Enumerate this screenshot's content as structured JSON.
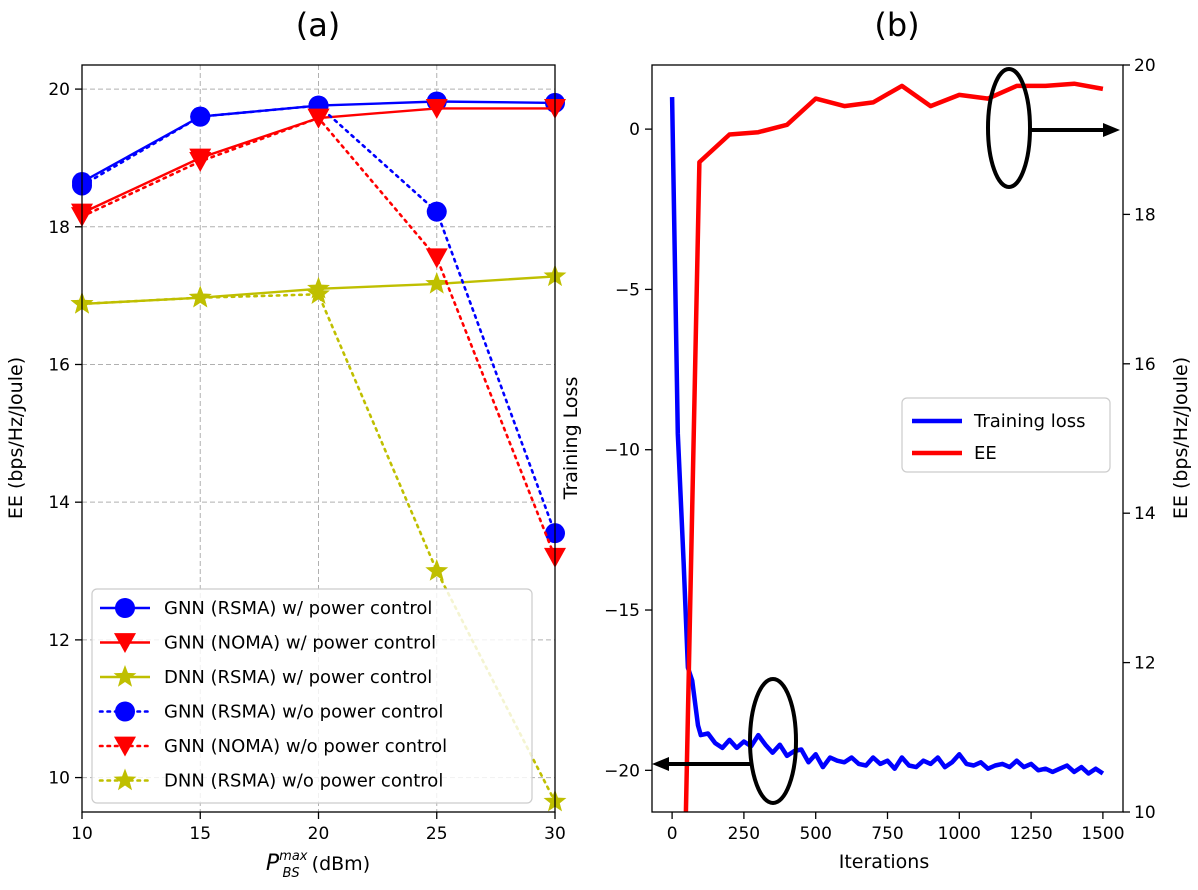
{
  "chart_data": [
    {
      "panel": "(a)",
      "type": "line",
      "xlabel_base": "P",
      "xlabel_sup": "max",
      "xlabel_sub": "BS",
      "xlabel_unit": "(dBm)",
      "ylabel": "EE (bps/Hz/Joule)",
      "xlim": [
        10,
        30
      ],
      "ylim": [
        9.5,
        20.35
      ],
      "xticks": [
        10,
        15,
        20,
        25,
        30
      ],
      "yticks": [
        10,
        12,
        14,
        16,
        18,
        20
      ],
      "grid": true,
      "legend_position": "lower-left",
      "x": [
        10,
        15,
        20,
        25,
        30
      ],
      "series": [
        {
          "name": "GNN (RSMA) w/ power control",
          "color": "#0000ff",
          "style": "solid",
          "marker": "circle",
          "values": [
            18.65,
            19.6,
            19.76,
            19.82,
            19.8
          ]
        },
        {
          "name": "GNN (NOMA) w/ power control",
          "color": "#ff0000",
          "style": "solid",
          "marker": "triangle-down",
          "values": [
            18.2,
            19.0,
            19.58,
            19.72,
            19.72
          ]
        },
        {
          "name": "DNN (RSMA) w/ power control",
          "color": "#bfbf00",
          "style": "solid",
          "marker": "star",
          "values": [
            16.88,
            16.97,
            17.1,
            17.17,
            17.28
          ]
        },
        {
          "name": "GNN (RSMA) w/o power control",
          "color": "#0000ff",
          "style": "dotted",
          "marker": "circle",
          "values": [
            18.6,
            19.6,
            19.76,
            18.22,
            13.55
          ]
        },
        {
          "name": "GNN (NOMA) w/o power control",
          "color": "#ff0000",
          "style": "dotted",
          "marker": "triangle-down",
          "values": [
            18.15,
            18.95,
            19.58,
            17.55,
            13.2
          ]
        },
        {
          "name": "DNN (RSMA) w/o power control",
          "color": "#bfbf00",
          "style": "dotted",
          "marker": "star",
          "values": [
            16.88,
            16.97,
            17.02,
            13.0,
            9.65
          ]
        }
      ]
    },
    {
      "panel": "(b)",
      "type": "line",
      "xlabel": "Iterations",
      "ylabel_left": "Training Loss",
      "ylabel_right": "EE (bps/Hz/Joule)",
      "xlim": [
        -70,
        1570
      ],
      "ylim_left": [
        -21.3,
        2
      ],
      "ylim_right": [
        10,
        20
      ],
      "xticks": [
        0,
        250,
        500,
        750,
        1000,
        1250,
        1500
      ],
      "yticks_left": [
        -20,
        -15,
        -10,
        -5,
        0
      ],
      "yticks_right": [
        10,
        12,
        14,
        16,
        18,
        20
      ],
      "grid": false,
      "legend_position": "center-right",
      "series": [
        {
          "name": "Training loss",
          "axis": "left",
          "color": "#0000ff",
          "x": [
            0,
            20,
            40,
            55,
            70,
            90,
            100,
            125,
            150,
            175,
            200,
            225,
            250,
            275,
            300,
            325,
            350,
            375,
            400,
            425,
            450,
            475,
            500,
            525,
            550,
            575,
            600,
            625,
            650,
            675,
            700,
            725,
            750,
            775,
            800,
            825,
            850,
            875,
            900,
            925,
            950,
            975,
            1000,
            1025,
            1050,
            1075,
            1100,
            1125,
            1150,
            1175,
            1200,
            1225,
            1250,
            1275,
            1300,
            1325,
            1350,
            1375,
            1400,
            1425,
            1450,
            1475,
            1500
          ],
          "values": [
            1.0,
            -9.5,
            -13.5,
            -16.8,
            -17.2,
            -18.6,
            -18.9,
            -18.85,
            -19.15,
            -19.3,
            -19.05,
            -19.3,
            -19.1,
            -19.25,
            -18.9,
            -19.2,
            -19.45,
            -19.2,
            -19.55,
            -19.4,
            -19.35,
            -19.75,
            -19.5,
            -19.9,
            -19.6,
            -19.7,
            -19.75,
            -19.6,
            -19.8,
            -19.85,
            -19.6,
            -19.8,
            -19.7,
            -19.95,
            -19.6,
            -19.85,
            -19.9,
            -19.7,
            -19.8,
            -19.6,
            -19.9,
            -19.75,
            -19.5,
            -19.8,
            -19.85,
            -19.75,
            -19.95,
            -19.85,
            -19.8,
            -19.9,
            -19.7,
            -19.9,
            -19.8,
            -20.0,
            -19.95,
            -20.05,
            -19.95,
            -19.85,
            -20.05,
            -19.9,
            -20.1,
            -19.95,
            -20.1
          ]
        },
        {
          "name": "EE",
          "axis": "right",
          "color": "#ff0000",
          "x": [
            48,
            95,
            200,
            300,
            400,
            500,
            600,
            700,
            800,
            900,
            1000,
            1100,
            1200,
            1300,
            1400,
            1500
          ],
          "values": [
            10.0,
            18.7,
            19.07,
            19.1,
            19.2,
            19.55,
            19.45,
            19.5,
            19.72,
            19.45,
            19.6,
            19.55,
            19.72,
            19.72,
            19.75,
            19.68
          ]
        }
      ]
    }
  ]
}
